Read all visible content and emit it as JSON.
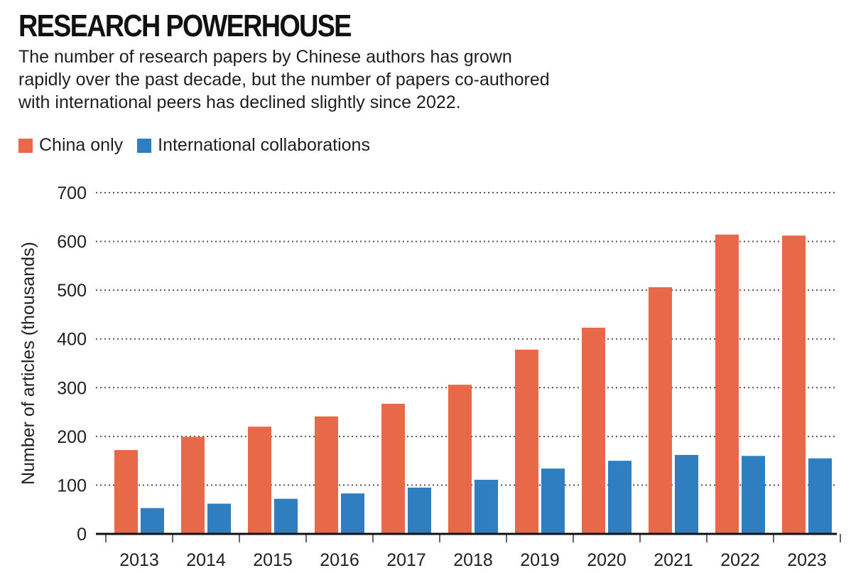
{
  "chart_data": {
    "type": "bar",
    "title": "RESEARCH POWERHOUSE",
    "subtitle": "The number of research papers by Chinese authors has grown rapidly over the past decade, but the number of papers co-authored with international peers has declined slightly since 2022.",
    "subtitle_lines": [
      "The number of research papers by Chinese authors has grown",
      "rapidly over the past decade, but the number of papers co-authored",
      "with international peers has declined slightly since 2022."
    ],
    "xlabel": "",
    "ylabel": "Number of articles (thousands)",
    "ylim": [
      0,
      700
    ],
    "yticks": [
      0,
      100,
      200,
      300,
      400,
      500,
      600,
      700
    ],
    "grid": true,
    "legend_position": "top-left",
    "categories": [
      "2013",
      "2014",
      "2015",
      "2016",
      "2017",
      "2018",
      "2019",
      "2020",
      "2021",
      "2022",
      "2023"
    ],
    "series": [
      {
        "name": "China only",
        "color": "#e8694a",
        "values": [
          172,
          199,
          220,
          241,
          267,
          306,
          378,
          423,
          506,
          614,
          612
        ]
      },
      {
        "name": "International collaborations",
        "color": "#2f7ec0",
        "values": [
          53,
          62,
          72,
          83,
          95,
          111,
          134,
          150,
          162,
          160,
          155
        ]
      }
    ]
  }
}
